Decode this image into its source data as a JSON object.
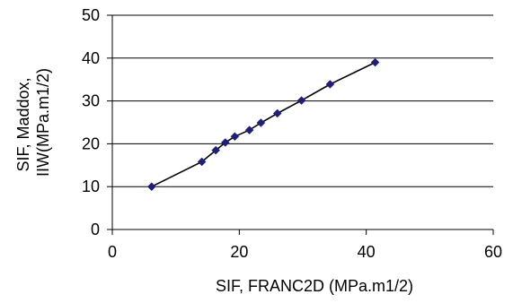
{
  "chart_data": {
    "type": "scatter",
    "title": "",
    "xlabel": "SIF, FRANC2D (MPa.m1/2)",
    "ylabel_lines": [
      "SIF, Maddox,",
      "IIW(MPa.m1/2)"
    ],
    "xlim": [
      0,
      60
    ],
    "ylim": [
      0,
      50
    ],
    "xticks": [
      0,
      20,
      40,
      60
    ],
    "yticks": [
      0,
      10,
      20,
      30,
      40,
      50
    ],
    "grid": "horizontal",
    "legend": "none",
    "marker_color": "#1f1f7a",
    "line_color": "#000000",
    "series": [
      {
        "points": [
          {
            "x": 6.2,
            "y": 10.0
          },
          {
            "x": 14.1,
            "y": 15.8
          },
          {
            "x": 16.3,
            "y": 18.5
          },
          {
            "x": 17.8,
            "y": 20.3
          },
          {
            "x": 19.3,
            "y": 21.7
          },
          {
            "x": 21.6,
            "y": 23.2
          },
          {
            "x": 23.4,
            "y": 24.9
          },
          {
            "x": 26.0,
            "y": 27.1
          },
          {
            "x": 29.8,
            "y": 30.1
          },
          {
            "x": 34.3,
            "y": 33.9
          },
          {
            "x": 41.4,
            "y": 39.0
          }
        ]
      }
    ]
  }
}
